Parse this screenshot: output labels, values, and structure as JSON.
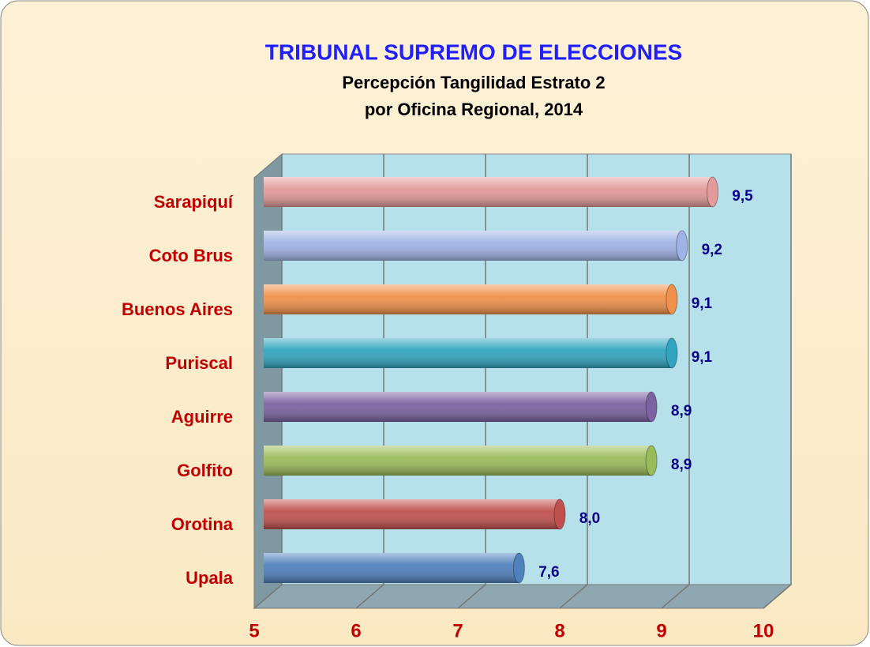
{
  "chart_data": {
    "type": "bar",
    "orientation": "horizontal",
    "title": "TRIBUNAL SUPREMO DE ELECCIONES",
    "subtitle": [
      "Percepción Tangilidad Estrato 2",
      "por Oficina Regional, 2014"
    ],
    "categories": [
      "Sarapiquí",
      "Coto Brus",
      "Buenos Aires",
      "Puriscal",
      "Aguirre",
      "Golfito",
      "Orotina",
      "Upala"
    ],
    "values": [
      9.5,
      9.2,
      9.1,
      9.1,
      8.9,
      8.9,
      8.0,
      7.6
    ],
    "value_labels": [
      "9,5",
      "9,2",
      "9,1",
      "9,1",
      "8,9",
      "8,9",
      "8,0",
      "7,6"
    ],
    "colors": [
      "#e39a9a",
      "#9fb3e6",
      "#f0904a",
      "#31a5bf",
      "#7b62a0",
      "#9bbb59",
      "#c0504d",
      "#4f81bd"
    ],
    "xlim": [
      5,
      10
    ],
    "xticks": [
      5,
      6,
      7,
      8,
      9,
      10
    ],
    "grid": true
  }
}
